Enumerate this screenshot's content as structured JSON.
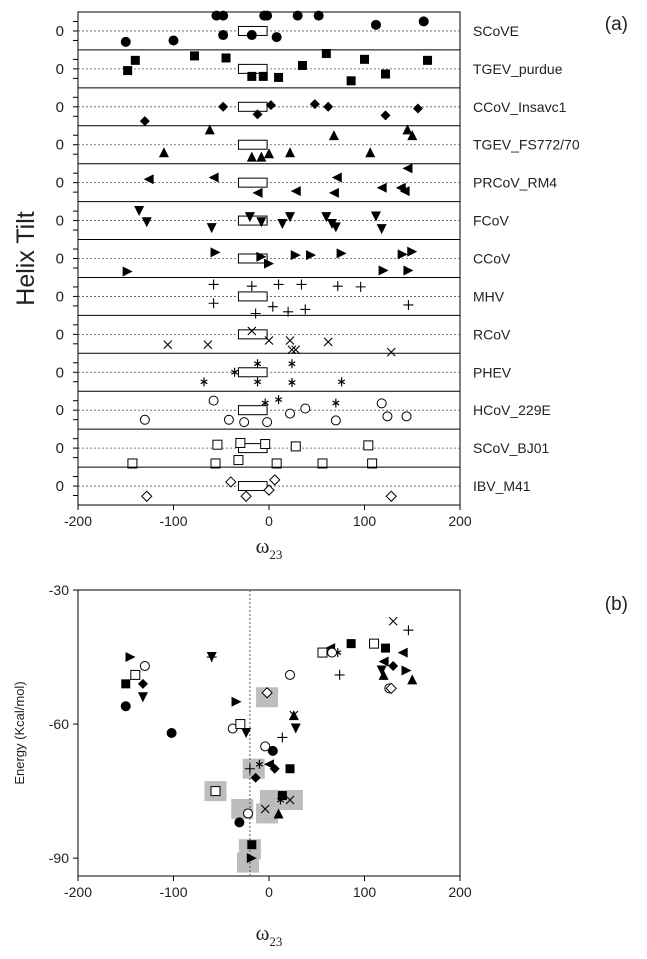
{
  "chart_data": [
    {
      "panel": "(a)",
      "type": "scatter",
      "xlabel": "ω",
      "xlabel_sub": "23",
      "ylabel": "Helix Tilt",
      "xlim": [
        -200,
        200
      ],
      "xticks": [
        "-200",
        "-100",
        "0",
        "100",
        "200"
      ],
      "row_baseline_label": "0",
      "marker_scale": "normalized tilt offset within each row (-0.5 .. 0.5)",
      "reference_box": {
        "x_range": [
          -32,
          -2
        ]
      },
      "rows": [
        {
          "name": "SCoVE",
          "marker": "circle-filled",
          "points": [
            [
              -150,
              0.32
            ],
            [
              -100,
              0.28
            ],
            [
              -55,
              -0.45
            ],
            [
              -48,
              -0.45
            ],
            [
              -5,
              -0.45
            ],
            [
              30,
              -0.45
            ],
            [
              52,
              -0.45
            ],
            [
              112,
              -0.18
            ],
            [
              -48,
              0.12
            ],
            [
              -18,
              0.12
            ],
            [
              -2,
              -0.45
            ],
            [
              162,
              -0.28
            ],
            [
              8,
              0.18
            ]
          ]
        },
        {
          "name": "TGEV_purdue",
          "marker": "square-filled",
          "points": [
            [
              -148,
              0.05
            ],
            [
              -140,
              -0.25
            ],
            [
              -78,
              -0.38
            ],
            [
              -45,
              -0.32
            ],
            [
              -18,
              0.22
            ],
            [
              -6,
              0.22
            ],
            [
              10,
              0.25
            ],
            [
              35,
              -0.1
            ],
            [
              60,
              -0.45
            ],
            [
              86,
              0.35
            ],
            [
              100,
              -0.28
            ],
            [
              122,
              0.15
            ],
            [
              166,
              -0.25
            ]
          ]
        },
        {
          "name": "CCoV_Insavc1",
          "marker": "diamond-filled",
          "points": [
            [
              -130,
              0.42
            ],
            [
              -48,
              0.0
            ],
            [
              2,
              -0.05
            ],
            [
              48,
              -0.08
            ],
            [
              62,
              0.0
            ],
            [
              122,
              0.25
            ],
            [
              156,
              0.05
            ],
            [
              -12,
              0.22
            ]
          ]
        },
        {
          "name": "TGEV_FS772/70",
          "marker": "triangle-up-filled",
          "points": [
            [
              -110,
              0.22
            ],
            [
              -62,
              -0.45
            ],
            [
              -18,
              0.35
            ],
            [
              -8,
              0.35
            ],
            [
              0,
              0.25
            ],
            [
              22,
              0.22
            ],
            [
              68,
              -0.28
            ],
            [
              106,
              0.22
            ],
            [
              150,
              -0.28
            ],
            [
              145,
              -0.45
            ]
          ]
        },
        {
          "name": "PRCoV_RM4",
          "marker": "triangle-left-filled",
          "points": [
            [
              -126,
              -0.1
            ],
            [
              -58,
              -0.15
            ],
            [
              -12,
              0.3
            ],
            [
              28,
              0.25
            ],
            [
              68,
              0.3
            ],
            [
              118,
              0.15
            ],
            [
              142,
              0.25
            ],
            [
              138,
              0.15
            ],
            [
              71,
              -0.15
            ],
            [
              145,
              -0.42
            ]
          ]
        },
        {
          "name": "FCoV",
          "marker": "triangle-down-filled",
          "points": [
            [
              -136,
              -0.28
            ],
            [
              -128,
              0.05
            ],
            [
              -60,
              0.22
            ],
            [
              -20,
              -0.1
            ],
            [
              -8,
              0.05
            ],
            [
              14,
              0.1
            ],
            [
              22,
              -0.1
            ],
            [
              60,
              -0.1
            ],
            [
              66,
              0.1
            ],
            [
              112,
              -0.12
            ],
            [
              118,
              0.25
            ],
            [
              70,
              0.2
            ]
          ]
        },
        {
          "name": "CCoV",
          "marker": "triangle-right-filled",
          "points": [
            [
              -148,
              0.38
            ],
            [
              -56,
              -0.18
            ],
            [
              -8,
              -0.05
            ],
            [
              0,
              0.15
            ],
            [
              28,
              -0.1
            ],
            [
              44,
              -0.1
            ],
            [
              76,
              -0.15
            ],
            [
              120,
              0.35
            ],
            [
              140,
              -0.12
            ],
            [
              150,
              -0.2
            ],
            [
              146,
              0.35
            ]
          ]
        },
        {
          "name": "MHV",
          "marker": "plus",
          "points": [
            [
              -58,
              -0.35
            ],
            [
              -18,
              -0.3
            ],
            [
              -58,
              0.2
            ],
            [
              -14,
              0.5
            ],
            [
              4,
              0.3
            ],
            [
              10,
              -0.35
            ],
            [
              34,
              -0.35
            ],
            [
              20,
              0.45
            ],
            [
              38,
              0.38
            ],
            [
              72,
              -0.3
            ],
            [
              96,
              -0.28
            ],
            [
              146,
              0.25
            ]
          ]
        },
        {
          "name": "RCoV",
          "marker": "x",
          "points": [
            [
              -106,
              0.3
            ],
            [
              -64,
              0.3
            ],
            [
              -18,
              -0.1
            ],
            [
              0,
              0.18
            ],
            [
              24,
              0.45
            ],
            [
              22,
              0.18
            ],
            [
              28,
              0.45
            ],
            [
              62,
              0.22
            ],
            [
              128,
              0.52
            ]
          ]
        },
        {
          "name": "PHEV",
          "marker": "asterisk",
          "points": [
            [
              -68,
              0.28
            ],
            [
              -36,
              0.0
            ],
            [
              -12,
              -0.25
            ],
            [
              -12,
              0.28
            ],
            [
              24,
              -0.25
            ],
            [
              24,
              0.3
            ],
            [
              76,
              0.28
            ],
            [
              -4,
              0.9
            ],
            [
              10,
              0.8
            ],
            [
              70,
              0.9
            ]
          ]
        },
        {
          "name": "HCoV_229E",
          "marker": "circle-open",
          "points": [
            [
              -58,
              -0.28
            ],
            [
              -130,
              0.28
            ],
            [
              -42,
              0.28
            ],
            [
              -26,
              0.35
            ],
            [
              -2,
              0.35
            ],
            [
              22,
              0.1
            ],
            [
              38,
              -0.05
            ],
            [
              70,
              0.3
            ],
            [
              118,
              -0.2
            ],
            [
              124,
              0.18
            ],
            [
              144,
              0.18
            ]
          ]
        },
        {
          "name": "SCoV_BJ01",
          "marker": "square-open",
          "points": [
            [
              -143,
              0.45
            ],
            [
              -56,
              0.45
            ],
            [
              -54,
              -0.1
            ],
            [
              -32,
              0.35
            ],
            [
              -30,
              -0.15
            ],
            [
              -4,
              -0.12
            ],
            [
              28,
              -0.05
            ],
            [
              8,
              0.45
            ],
            [
              56,
              0.45
            ],
            [
              104,
              -0.08
            ],
            [
              108,
              0.45
            ]
          ]
        },
        {
          "name": "IBV_M41",
          "marker": "diamond-open",
          "points": [
            [
              -128,
              0.3
            ],
            [
              -40,
              -0.12
            ],
            [
              -24,
              0.3
            ],
            [
              0,
              0.12
            ],
            [
              6,
              -0.18
            ],
            [
              128,
              0.3
            ]
          ]
        }
      ]
    },
    {
      "panel": "(b)",
      "type": "scatter",
      "xlabel": "ω",
      "xlabel_sub": "23",
      "ylabel": "Energy (Kcal/mol)",
      "xlim": [
        -200,
        200
      ],
      "ylim": [
        -94,
        -30
      ],
      "xticks": [
        "-200",
        "-100",
        "0",
        "100",
        "200"
      ],
      "yticks": [
        "-30",
        "-60",
        "-90"
      ],
      "reference_x": -20,
      "highlight_boxes": [
        [
          -56,
          -75
        ],
        [
          -28,
          -79
        ],
        [
          -20,
          -88
        ],
        [
          -22,
          -91
        ],
        [
          -16,
          -70
        ],
        [
          -2,
          -54
        ],
        [
          2,
          -77
        ],
        [
          -2,
          -80
        ],
        [
          24,
          -77
        ]
      ],
      "points": [
        {
          "marker": "circle-filled",
          "x": -150,
          "y": -56
        },
        {
          "marker": "circle-filled",
          "x": -102,
          "y": -62
        },
        {
          "marker": "circle-filled",
          "x": -31,
          "y": -82
        },
        {
          "marker": "circle-filled",
          "x": 4,
          "y": -66
        },
        {
          "marker": "square-filled",
          "x": -150,
          "y": -51
        },
        {
          "marker": "square-filled",
          "x": 22,
          "y": -70
        },
        {
          "marker": "square-filled",
          "x": 86,
          "y": -42
        },
        {
          "marker": "square-filled",
          "x": 122,
          "y": -43
        },
        {
          "marker": "square-filled",
          "x": -18,
          "y": -87
        },
        {
          "marker": "square-filled",
          "x": 14,
          "y": -76
        },
        {
          "marker": "diamond-filled",
          "x": -132,
          "y": -51
        },
        {
          "marker": "diamond-filled",
          "x": -14,
          "y": -72
        },
        {
          "marker": "diamond-filled",
          "x": 130,
          "y": -47
        },
        {
          "marker": "diamond-filled",
          "x": 6,
          "y": -70
        },
        {
          "marker": "triangle-up-filled",
          "x": 120,
          "y": -49
        },
        {
          "marker": "triangle-up-filled",
          "x": 150,
          "y": -50
        },
        {
          "marker": "triangle-up-filled",
          "x": 10,
          "y": -80
        },
        {
          "marker": "triangle-up-filled",
          "x": 26,
          "y": -58
        },
        {
          "marker": "triangle-left-filled",
          "x": 64,
          "y": -43
        },
        {
          "marker": "triangle-left-filled",
          "x": 140,
          "y": -44
        },
        {
          "marker": "triangle-left-filled",
          "x": 0,
          "y": -69
        },
        {
          "marker": "triangle-left-filled",
          "x": 120,
          "y": -46
        },
        {
          "marker": "triangle-down-filled",
          "x": -132,
          "y": -54
        },
        {
          "marker": "triangle-down-filled",
          "x": -60,
          "y": -45
        },
        {
          "marker": "triangle-down-filled",
          "x": -24,
          "y": -62
        },
        {
          "marker": "triangle-down-filled",
          "x": 28,
          "y": -61
        },
        {
          "marker": "triangle-down-filled",
          "x": 118,
          "y": -48
        },
        {
          "marker": "triangle-right-filled",
          "x": -145,
          "y": -45
        },
        {
          "marker": "triangle-right-filled",
          "x": -34,
          "y": -55
        },
        {
          "marker": "triangle-right-filled",
          "x": -18,
          "y": -90
        },
        {
          "marker": "triangle-right-filled",
          "x": 144,
          "y": -48
        },
        {
          "marker": "plus",
          "x": -60,
          "y": -45
        },
        {
          "marker": "plus",
          "x": -20,
          "y": -70
        },
        {
          "marker": "plus",
          "x": 14,
          "y": -63
        },
        {
          "marker": "plus",
          "x": 74,
          "y": -49
        },
        {
          "marker": "plus",
          "x": 146,
          "y": -39
        },
        {
          "marker": "x",
          "x": -4,
          "y": -79
        },
        {
          "marker": "x",
          "x": 22,
          "y": -77
        },
        {
          "marker": "x",
          "x": 26,
          "y": -58
        },
        {
          "marker": "x",
          "x": 130,
          "y": -37
        },
        {
          "marker": "asterisk",
          "x": 12,
          "y": -77
        },
        {
          "marker": "asterisk",
          "x": 72,
          "y": -44
        },
        {
          "marker": "asterisk",
          "x": -10,
          "y": -69
        },
        {
          "marker": "circle-open",
          "x": -130,
          "y": -47
        },
        {
          "marker": "circle-open",
          "x": -38,
          "y": -61
        },
        {
          "marker": "circle-open",
          "x": -4,
          "y": -65
        },
        {
          "marker": "circle-open",
          "x": 22,
          "y": -49
        },
        {
          "marker": "circle-open",
          "x": 66,
          "y": -44
        },
        {
          "marker": "circle-open",
          "x": -22,
          "y": -80
        },
        {
          "marker": "circle-open",
          "x": 126,
          "y": -52
        },
        {
          "marker": "square-open",
          "x": -140,
          "y": -49
        },
        {
          "marker": "square-open",
          "x": -56,
          "y": -75
        },
        {
          "marker": "square-open",
          "x": -30,
          "y": -60
        },
        {
          "marker": "square-open",
          "x": 56,
          "y": -44
        },
        {
          "marker": "square-open",
          "x": 110,
          "y": -42
        },
        {
          "marker": "diamond-open",
          "x": -2,
          "y": -53
        },
        {
          "marker": "diamond-open",
          "x": 128,
          "y": -52
        }
      ]
    }
  ]
}
